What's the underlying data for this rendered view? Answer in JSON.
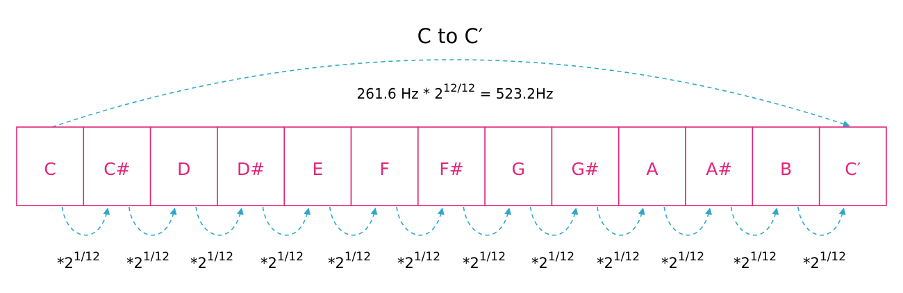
{
  "diagram": {
    "title": "C to C′",
    "formula": {
      "base": "261.6 Hz * 2",
      "exponent": "12/12",
      "result": " = 523.2Hz"
    },
    "notes": [
      "C",
      "C#",
      "D",
      "D#",
      "E",
      "F",
      "F#",
      "G",
      "G#",
      "A",
      "A#",
      "B",
      "C′"
    ],
    "step": {
      "prefix": "*2",
      "exponent": "1/12"
    },
    "colors": {
      "note": "#e0267a",
      "arrow": "#2fa8c8",
      "text": "#000000"
    }
  }
}
